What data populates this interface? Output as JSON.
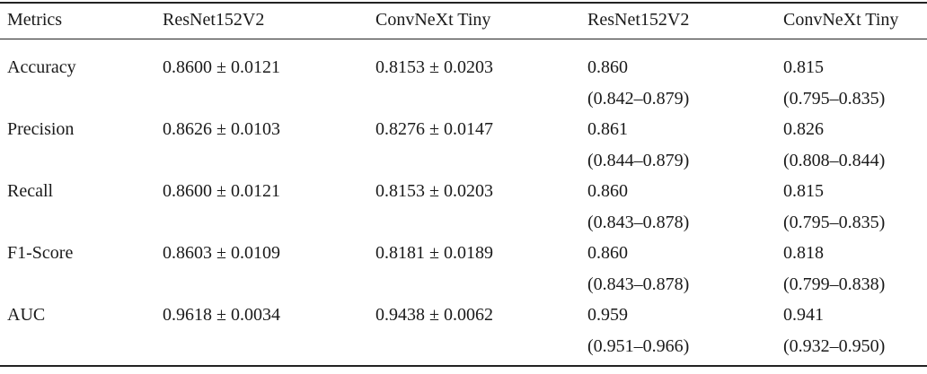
{
  "table": {
    "header": [
      "Metrics",
      "ResNet152V2",
      "ConvNeXt Tiny",
      "ResNet152V2",
      "ConvNeXt Tiny"
    ],
    "rows": [
      [
        "Accuracy",
        "0.8600 ± 0.0121",
        "0.8153 ± 0.0203",
        "0.860",
        "(0.842–0.879)",
        "0.815",
        "(0.795–0.835)"
      ],
      [
        "Precision",
        "0.8626 ± 0.0103",
        "0.8276 ± 0.0147",
        "0.861",
        "(0.844–0.879)",
        "0.826",
        "(0.808–0.844)"
      ],
      [
        "Recall",
        "0.8600 ± 0.0121",
        "0.8153 ± 0.0203",
        "0.860",
        "(0.843–0.878)",
        "0.815",
        "(0.795–0.835)"
      ],
      [
        "F1-Score",
        "0.8603 ± 0.0109",
        "0.8181 ± 0.0189",
        "0.860",
        "(0.843–0.878)",
        "0.818",
        "(0.799–0.838)"
      ],
      [
        "AUC",
        "0.9618 ± 0.0034",
        "0.9438 ± 0.0062",
        "0.959",
        "(0.951–0.966)",
        "0.941",
        "(0.932–0.950)"
      ]
    ]
  }
}
